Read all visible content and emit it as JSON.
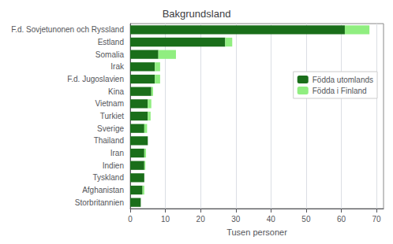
{
  "chart_data": {
    "type": "bar",
    "orientation": "horizontal",
    "stacked": true,
    "title": "Bakgrundsland",
    "xlabel": "Tusen personer",
    "categories": [
      "F.d. Sovjetunonen och Ryssland",
      "Estland",
      "Somalia",
      "Irak",
      "F.d. Jugoslavien",
      "Kina",
      "Vietnam",
      "Turkiet",
      "Sverige",
      "Thailand",
      "Iran",
      "Indien",
      "Tyskland",
      "Afghanistan",
      "Storbritannien"
    ],
    "series": [
      {
        "name": "Födda utomlands",
        "color": "#1a6e1a",
        "values": [
          61,
          27,
          8,
          7,
          7,
          6,
          5,
          5,
          4,
          5,
          4,
          4,
          4,
          3.5,
          3
        ]
      },
      {
        "name": "Födda i Finland",
        "color": "#90ee80",
        "values": [
          7,
          2,
          5,
          1.5,
          1.5,
          0.5,
          1,
          0.8,
          0.8,
          0,
          0.5,
          0.3,
          0,
          0.5,
          0
        ]
      }
    ],
    "xlim": [
      0,
      72
    ],
    "xticks": [
      0,
      10,
      20,
      30,
      40,
      50,
      60,
      70
    ],
    "grid": true,
    "legend": "right"
  }
}
